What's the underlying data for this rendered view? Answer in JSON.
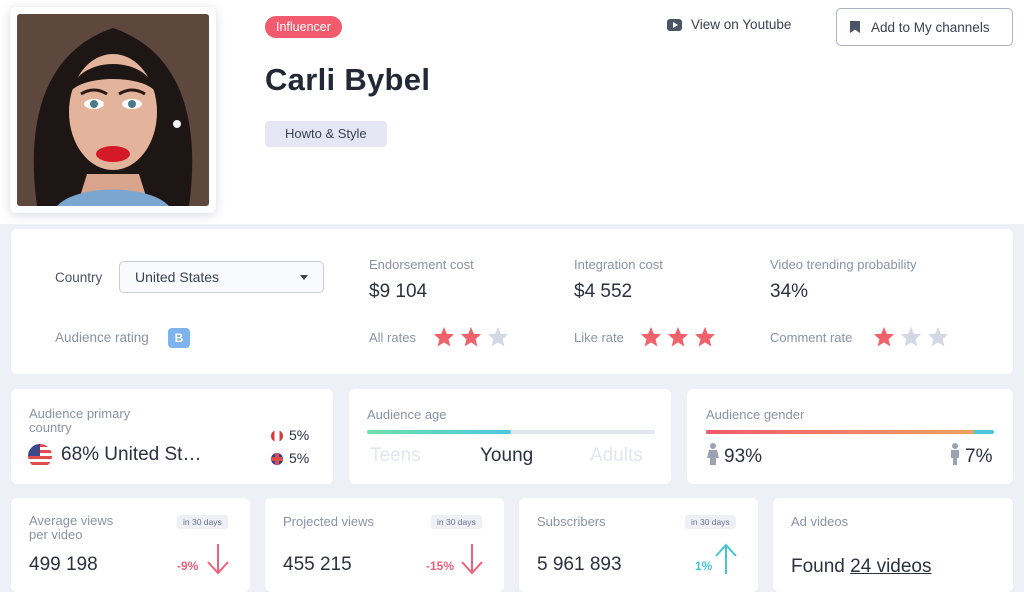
{
  "profile": {
    "badge": "Influencer",
    "name": "Carli Bybel",
    "category": "Howto & Style",
    "view_link": "View on Youtube",
    "add_button": "Add to My channels",
    "avatar_icon": "avatar-photo"
  },
  "stats": {
    "country_label": "Country",
    "country_value": "United States",
    "audience_rating_label": "Audience rating",
    "audience_rating_value": "B",
    "endorsement": {
      "label": "Endorsement cost",
      "value": "$9 104"
    },
    "integration": {
      "label": "Integration cost",
      "value": "$4 552"
    },
    "trending": {
      "label": "Video trending probability",
      "value": "34%"
    },
    "all_rates": {
      "label": "All rates",
      "stars": 2,
      "max": 3
    },
    "like_rate": {
      "label": "Like rate",
      "stars": 3,
      "max": 3
    },
    "comment_rate": {
      "label": "Comment rate",
      "stars": 1,
      "max": 3
    }
  },
  "audience": {
    "primary_country": {
      "label_line1": "Audience primary",
      "label_line2": "country",
      "value": "68% United St…",
      "secondary": [
        {
          "flag": "canada-flag",
          "percent": "5%"
        },
        {
          "flag": "uk-flag",
          "percent": "5%"
        }
      ]
    },
    "age": {
      "label": "Audience age",
      "young_fraction": 0.5,
      "teens": "Teens",
      "young": "Young",
      "adults": "Adults"
    },
    "gender": {
      "label": "Audience gender",
      "female": "93%",
      "male": "7%",
      "female_fraction": 0.93
    }
  },
  "metrics": {
    "avg_views": {
      "label_line1": "Average views",
      "label_line2": "per video",
      "period": "in 30 days",
      "value": "499 198",
      "change": "-9%",
      "direction": "down"
    },
    "projected_views": {
      "label": "Projected views",
      "period": "in 30 days",
      "value": "455 215",
      "change": "-15%",
      "direction": "down"
    },
    "subscribers": {
      "label": "Subscribers",
      "period": "in 30 days",
      "value": "5 961 893",
      "change": "1%",
      "direction": "up"
    },
    "ad_videos": {
      "label": "Ad videos",
      "prefix": "Found",
      "link": "24 videos"
    }
  },
  "colors": {
    "accent_red": "#f25a6e",
    "star_active": "#f0626b",
    "star_inactive": "#d3d8e4",
    "up_teal": "#45c6d6",
    "down_red": "#f0607a"
  }
}
